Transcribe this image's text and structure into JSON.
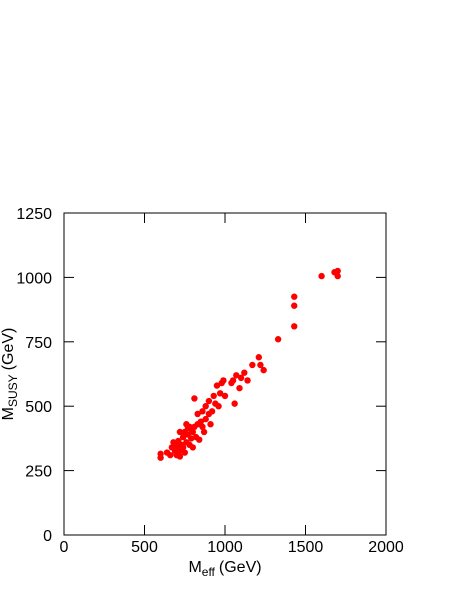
{
  "chart_data": {
    "type": "scatter",
    "x_label": {
      "symbol": "M",
      "subscript": "eff",
      "unit": "(GeV)"
    },
    "y_label": {
      "symbol": "M",
      "subscript": "SUSY",
      "unit": "(GeV)"
    },
    "color": "#ff0000",
    "xlim": [
      0,
      2000
    ],
    "ylim": [
      0,
      1250
    ],
    "xticks": [
      0,
      500,
      1000,
      1500,
      2000
    ],
    "yticks": [
      0,
      250,
      500,
      750,
      1000,
      1250
    ],
    "x": [
      600,
      600,
      640,
      660,
      670,
      680,
      690,
      700,
      700,
      710,
      720,
      720,
      730,
      740,
      740,
      750,
      750,
      760,
      770,
      770,
      780,
      790,
      790,
      800,
      800,
      810,
      820,
      830,
      840,
      850,
      860,
      860,
      880,
      880,
      900,
      900,
      910,
      920,
      930,
      940,
      950,
      960,
      970,
      980,
      990,
      1000,
      1040,
      1050,
      1060,
      1070,
      1090,
      1100,
      1120,
      1140,
      1170,
      1210,
      1220,
      1240,
      1330,
      1430,
      1430,
      1430,
      1600,
      1680,
      1700,
      1700,
      810,
      870,
      760,
      720,
      690,
      710,
      780,
      830
    ],
    "y": [
      300,
      315,
      320,
      310,
      340,
      360,
      325,
      310,
      345,
      365,
      330,
      305,
      350,
      380,
      340,
      320,
      400,
      360,
      390,
      415,
      350,
      375,
      410,
      340,
      400,
      420,
      380,
      430,
      370,
      440,
      420,
      480,
      450,
      500,
      470,
      520,
      430,
      480,
      540,
      510,
      580,
      500,
      550,
      590,
      600,
      540,
      590,
      600,
      510,
      620,
      570,
      610,
      630,
      600,
      660,
      690,
      660,
      640,
      760,
      810,
      890,
      925,
      1005,
      1020,
      1025,
      1005,
      530,
      400,
      430,
      400,
      350,
      320,
      420,
      470
    ]
  }
}
